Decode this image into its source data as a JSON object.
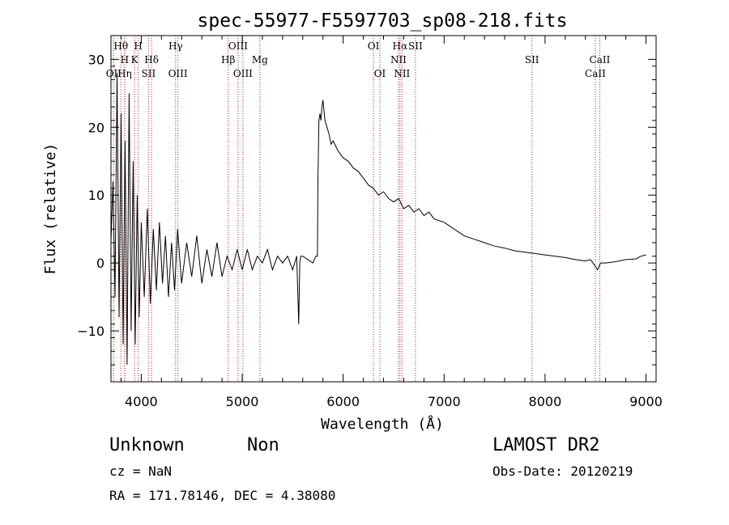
{
  "chart_data": {
    "type": "line",
    "title": "spec-55977-F5597703_sp08-218.fits",
    "xlabel": "Wavelength (Å)",
    "ylabel": "Flux (relative)",
    "xlim": [
      3700,
      9100
    ],
    "ylim": [
      -17.5,
      33.5
    ],
    "xticks": [
      4000,
      5000,
      6000,
      7000,
      8000,
      9000
    ],
    "yticks": [
      -10,
      0,
      10,
      20,
      30
    ],
    "grid": false,
    "series": [
      {
        "color": "#000000",
        "x": [
          3700,
          3720,
          3740,
          3760,
          3780,
          3800,
          3820,
          3840,
          3860,
          3880,
          3900,
          3920,
          3940,
          3960,
          3980,
          4000,
          4030,
          4060,
          4090,
          4120,
          4150,
          4180,
          4210,
          4240,
          4270,
          4300,
          4330,
          4360,
          4400,
          4450,
          4500,
          4550,
          4600,
          4650,
          4700,
          4750,
          4800,
          4850,
          4900,
          4950,
          5000,
          5050,
          5100,
          5150,
          5200,
          5250,
          5300,
          5350,
          5400,
          5450,
          5500,
          5540,
          5560,
          5570,
          5580,
          5600,
          5650,
          5700,
          5730,
          5745,
          5750,
          5760,
          5770,
          5780,
          5790,
          5800,
          5820,
          5840,
          5860,
          5880,
          5900,
          5950,
          6000,
          6050,
          6100,
          6150,
          6200,
          6250,
          6300,
          6350,
          6400,
          6450,
          6500,
          6550,
          6600,
          6650,
          6700,
          6750,
          6800,
          6850,
          6900,
          7000,
          7100,
          7200,
          7300,
          7400,
          7500,
          7600,
          7700,
          7800,
          7900,
          8000,
          8100,
          8200,
          8300,
          8400,
          8450,
          8500,
          8520,
          8550,
          8600,
          8700,
          8800,
          8900,
          8950,
          9000
        ],
        "y": [
          3,
          12,
          -5,
          28,
          -8,
          22,
          -12,
          18,
          -15,
          25,
          -10,
          15,
          -12,
          10,
          -8,
          6,
          -5,
          8,
          -6,
          5,
          -4,
          6,
          -3,
          4,
          -5,
          3,
          -4,
          5,
          -3,
          3,
          -2,
          4,
          -3,
          2,
          -2,
          3,
          -2,
          1,
          -1,
          2,
          -1,
          2,
          -1,
          1,
          0,
          2,
          -1,
          1,
          0,
          1,
          -1,
          1,
          -9,
          0,
          1,
          1,
          0.5,
          0,
          1,
          1,
          12,
          21,
          22,
          21,
          23,
          24,
          21,
          20,
          19,
          17.5,
          18,
          16.5,
          15.5,
          15,
          14,
          13.5,
          12.5,
          11.5,
          11,
          10,
          10.5,
          9.5,
          9,
          9.5,
          8,
          8.5,
          7.5,
          8,
          7,
          7.5,
          6.5,
          6,
          5,
          4,
          3.5,
          3,
          2.5,
          2.2,
          1.8,
          1.6,
          1.4,
          1.2,
          1,
          0.8,
          0.5,
          0.3,
          0.5,
          -0.5,
          -1,
          0,
          0,
          0.2,
          0.5,
          0.6,
          1,
          1.2
        ]
      }
    ],
    "lines": [
      {
        "label": "Hθ",
        "x": 3798,
        "row": 1
      },
      {
        "label": "H",
        "x": 3835,
        "row": 2
      },
      {
        "label": "OII",
        "x": 3727,
        "row": 3
      },
      {
        "label": "Hη",
        "x": 3835,
        "row": 3
      },
      {
        "label": "H",
        "x": 3970,
        "row": 1
      },
      {
        "label": "K",
        "x": 3934,
        "row": 2
      },
      {
        "label": "Hδ",
        "x": 4102,
        "row": 2
      },
      {
        "label": "SII",
        "x": 4072,
        "row": 3
      },
      {
        "label": "Hγ",
        "x": 4340,
        "row": 1
      },
      {
        "label": "OIII",
        "x": 4363,
        "row": 3
      },
      {
        "label": "OIII",
        "x": 4959,
        "row": 1
      },
      {
        "label": "Hβ",
        "x": 4861,
        "row": 2
      },
      {
        "label": "Mg",
        "x": 5175,
        "row": 2
      },
      {
        "label": "OIII",
        "x": 5007,
        "row": 3
      },
      {
        "label": "OI",
        "x": 6300,
        "row": 1
      },
      {
        "label": "OI",
        "x": 6364,
        "row": 3
      },
      {
        "label": "Hα",
        "x": 6563,
        "row": 1
      },
      {
        "label": "SII",
        "x": 6716,
        "row": 1
      },
      {
        "label": "NII",
        "x": 6548,
        "row": 2
      },
      {
        "label": "NII",
        "x": 6583,
        "row": 3
      },
      {
        "label": "SII",
        "x": 7870,
        "row": 2
      },
      {
        "label": "CaII",
        "x": 8542,
        "row": 2
      },
      {
        "label": "CaII",
        "x": 8498,
        "row": 3
      }
    ]
  },
  "info": {
    "class": "Unknown",
    "subclass": "Non",
    "survey": "LAMOST DR2",
    "cz": "cz = NaN",
    "obs_date": "Obs-Date: 20120219",
    "coords": "RA = 171.78146, DEC =   4.38080"
  }
}
